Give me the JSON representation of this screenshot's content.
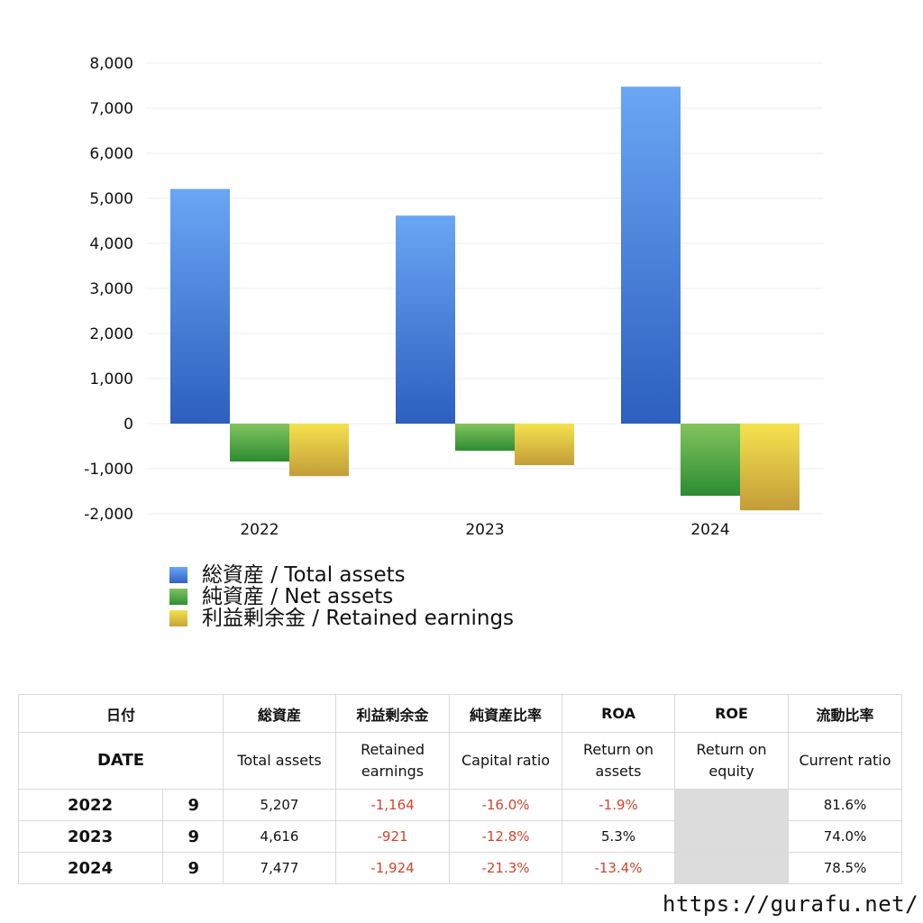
{
  "chart_data": {
    "type": "bar",
    "categories": [
      "2022",
      "2023",
      "2024"
    ],
    "series": [
      {
        "name": "総資産 / Total assets",
        "values": [
          5207,
          4616,
          7477
        ],
        "color": "#4a86e0"
      },
      {
        "name": "純資産 / Net assets",
        "values": [
          -840,
          -600,
          -1600
        ],
        "color": "#4caf45"
      },
      {
        "name": "利益剰余金 / Retained earnings",
        "values": [
          -1164,
          -921,
          -1924
        ],
        "color": "#e0c845"
      }
    ],
    "ylim": [
      -2000,
      8000
    ],
    "yticks": [
      "8,000",
      "7,000",
      "6,000",
      "5,000",
      "4,000",
      "3,000",
      "2,000",
      "1,000",
      "0",
      "-1,000",
      "-2,000"
    ],
    "ytick_values": [
      8000,
      7000,
      6000,
      5000,
      4000,
      3000,
      2000,
      1000,
      0,
      -1000,
      -2000
    ],
    "grid": true,
    "legend_position": "bottom-left"
  },
  "table": {
    "header_ja": [
      "日付",
      "総資産",
      "利益剰余金",
      "純資産比率",
      "ROA",
      "ROE",
      "流動比率"
    ],
    "header_en": {
      "date": "DATE",
      "total_assets": "Total assets",
      "retained_1": "Retained",
      "retained_2": "earnings",
      "capital_ratio": "Capital ratio",
      "roa_1": "Return on",
      "roa_2": "assets",
      "roe_1": "Return on",
      "roe_2": "equity",
      "current_ratio": "Current ratio"
    },
    "rows": [
      {
        "year": "2022",
        "month": "9",
        "total_assets": "5,207",
        "retained": "-1,164",
        "capital_ratio": "-16.0%",
        "roa": "-1.9%",
        "roe": "",
        "current_ratio": "81.6%"
      },
      {
        "year": "2023",
        "month": "9",
        "total_assets": "4,616",
        "retained": "-921",
        "capital_ratio": "-12.8%",
        "roa": "5.3%",
        "roe": "",
        "current_ratio": "74.0%"
      },
      {
        "year": "2024",
        "month": "9",
        "total_assets": "7,477",
        "retained": "-1,924",
        "capital_ratio": "-21.3%",
        "roa": "-13.4%",
        "roe": "",
        "current_ratio": "78.5%"
      }
    ]
  },
  "site_url": "https://gurafu.net/"
}
